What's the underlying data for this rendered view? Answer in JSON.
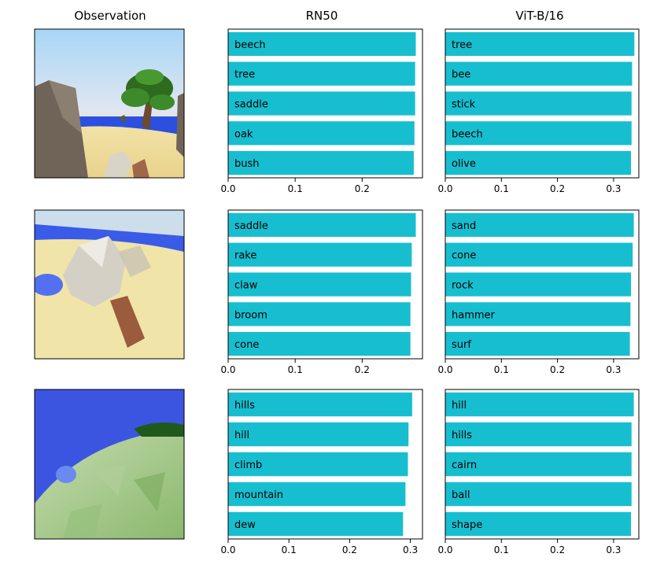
{
  "column_titles": {
    "observation": "Observation",
    "rn50": "RN50",
    "vit": "ViT-B/16"
  },
  "bar_color": "#17becf",
  "chart_data": [
    {
      "type": "bar",
      "orientation": "horizontal",
      "model": "RN50",
      "observation_row": 1,
      "categories": [
        "beech",
        "tree",
        "saddle",
        "oak",
        "bush"
      ],
      "values": [
        0.28,
        0.279,
        0.279,
        0.278,
        0.277
      ],
      "xlim": [
        0,
        0.29
      ],
      "xticks": [
        0.0,
        0.1,
        0.2
      ],
      "xtick_labels": [
        "0.0",
        "0.1",
        "0.2"
      ],
      "grid": false
    },
    {
      "type": "bar",
      "orientation": "horizontal",
      "model": "ViT-B/16",
      "observation_row": 1,
      "categories": [
        "tree",
        "bee",
        "stick",
        "beech",
        "olive"
      ],
      "values": [
        0.337,
        0.333,
        0.332,
        0.332,
        0.331
      ],
      "xlim": [
        0,
        0.345
      ],
      "xticks": [
        0.0,
        0.1,
        0.2,
        0.3
      ],
      "xtick_labels": [
        "0.0",
        "0.1",
        "0.2",
        "0.3"
      ],
      "grid": false
    },
    {
      "type": "bar",
      "orientation": "horizontal",
      "model": "RN50",
      "observation_row": 2,
      "categories": [
        "saddle",
        "rake",
        "claw",
        "broom",
        "cone"
      ],
      "values": [
        0.28,
        0.274,
        0.273,
        0.272,
        0.272
      ],
      "xlim": [
        0,
        0.29
      ],
      "xticks": [
        0.0,
        0.1,
        0.2
      ],
      "xtick_labels": [
        "0.0",
        "0.1",
        "0.2"
      ],
      "grid": false
    },
    {
      "type": "bar",
      "orientation": "horizontal",
      "model": "ViT-B/16",
      "observation_row": 2,
      "categories": [
        "sand",
        "cone",
        "rock",
        "hammer",
        "surf"
      ],
      "values": [
        0.336,
        0.334,
        0.331,
        0.33,
        0.329
      ],
      "xlim": [
        0,
        0.345
      ],
      "xticks": [
        0.0,
        0.1,
        0.2,
        0.3
      ],
      "xtick_labels": [
        "0.0",
        "0.1",
        "0.2",
        "0.3"
      ],
      "grid": false
    },
    {
      "type": "bar",
      "orientation": "horizontal",
      "model": "RN50",
      "observation_row": 3,
      "categories": [
        "hills",
        "hill",
        "climb",
        "mountain",
        "dew"
      ],
      "values": [
        0.303,
        0.297,
        0.296,
        0.292,
        0.288
      ],
      "xlim": [
        0,
        0.32
      ],
      "xticks": [
        0.0,
        0.1,
        0.2,
        0.3
      ],
      "xtick_labels": [
        "0.0",
        "0.1",
        "0.2",
        "0.3"
      ],
      "grid": false
    },
    {
      "type": "bar",
      "orientation": "horizontal",
      "model": "ViT-B/16",
      "observation_row": 3,
      "categories": [
        "hill",
        "hills",
        "cairn",
        "ball",
        "shape"
      ],
      "values": [
        0.336,
        0.332,
        0.332,
        0.332,
        0.331
      ],
      "xlim": [
        0,
        0.345
      ],
      "xticks": [
        0.0,
        0.1,
        0.2,
        0.3
      ],
      "xtick_labels": [
        "0.0",
        "0.1",
        "0.2",
        "0.3"
      ],
      "grid": false
    }
  ]
}
